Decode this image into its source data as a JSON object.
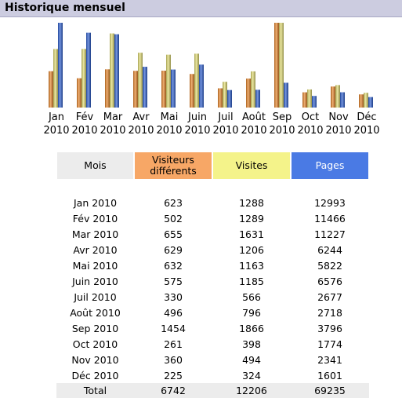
{
  "header": {
    "title": "Historique mensuel"
  },
  "colors": {
    "visiteurs": "#e8862a",
    "visites": "#e3dd72",
    "pages": "#2e60d2"
  },
  "table": {
    "headers": {
      "mois": "Mois",
      "visiteurs_line1": "Visiteurs",
      "visiteurs_line2": "différents",
      "visites": "Visites",
      "pages": "Pages"
    },
    "rows": [
      {
        "month": "Jan 2010",
        "visiteurs": "623",
        "visites": "1288",
        "pages": "12993"
      },
      {
        "month": "Fév 2010",
        "visiteurs": "502",
        "visites": "1289",
        "pages": "11466"
      },
      {
        "month": "Mar 2010",
        "visiteurs": "655",
        "visites": "1631",
        "pages": "11227"
      },
      {
        "month": "Avr 2010",
        "visiteurs": "629",
        "visites": "1206",
        "pages": "6244"
      },
      {
        "month": "Mai 2010",
        "visiteurs": "632",
        "visites": "1163",
        "pages": "5822"
      },
      {
        "month": "Juin 2010",
        "visiteurs": "575",
        "visites": "1185",
        "pages": "6576"
      },
      {
        "month": "Juil 2010",
        "visiteurs": "330",
        "visites": "566",
        "pages": "2677"
      },
      {
        "month": "Août 2010",
        "visiteurs": "496",
        "visites": "796",
        "pages": "2718"
      },
      {
        "month": "Sep 2010",
        "visiteurs": "1454",
        "visites": "1866",
        "pages": "3796"
      },
      {
        "month": "Oct 2010",
        "visiteurs": "261",
        "visites": "398",
        "pages": "1774"
      },
      {
        "month": "Nov 2010",
        "visiteurs": "360",
        "visites": "494",
        "pages": "2341"
      },
      {
        "month": "Déc 2010",
        "visiteurs": "225",
        "visites": "324",
        "pages": "1601"
      }
    ],
    "total": {
      "label": "Total",
      "visiteurs": "6742",
      "visites": "12206",
      "pages": "69235"
    }
  },
  "chart_data": {
    "type": "bar",
    "categories": [
      "Jan",
      "Fév",
      "Mar",
      "Avr",
      "Mai",
      "Juin",
      "Juil",
      "Août",
      "Sep",
      "Oct",
      "Nov",
      "Déc"
    ],
    "category_year": "2010",
    "series": [
      {
        "values": [
          623,
          502,
          655,
          629,
          632,
          575,
          330,
          496,
          1454,
          261,
          360,
          225
        ]
      },
      {
        "values": [
          1288,
          1289,
          1631,
          1206,
          1163,
          1185,
          566,
          796,
          1866,
          398,
          494,
          324
        ]
      },
      {
        "values": [
          12993,
          11466,
          11227,
          6244,
          5822,
          6576,
          2677,
          2718,
          3796,
          1774,
          2341,
          1601
        ]
      }
    ],
    "scaling": "each series scaled to its own maximum",
    "title": "",
    "xlabel": "",
    "ylabel": "",
    "grid": false,
    "legend": "none"
  }
}
